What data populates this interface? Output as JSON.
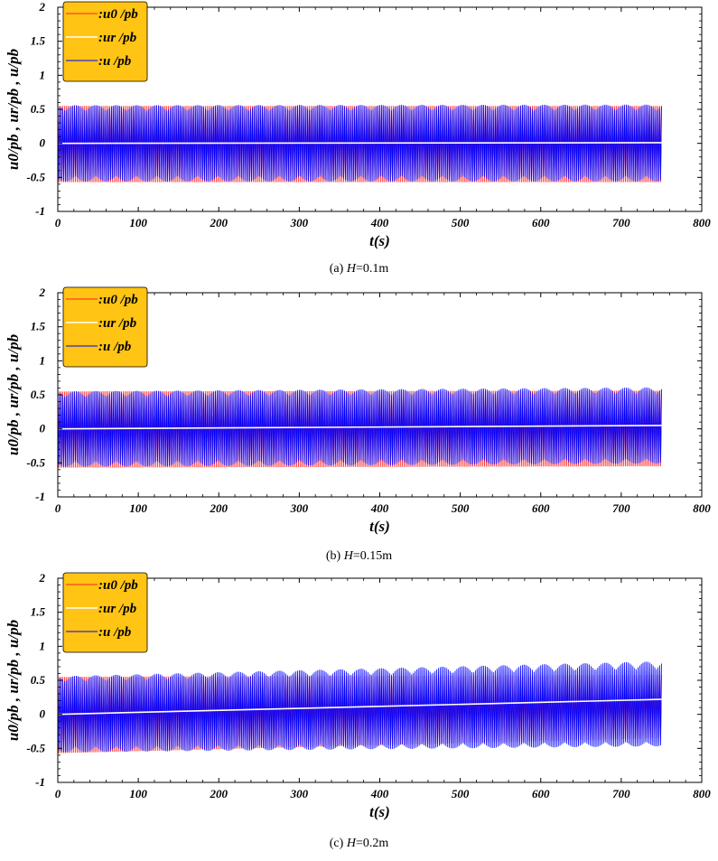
{
  "chart_data": [
    {
      "type": "line",
      "caption": {
        "prefix": "(a) ",
        "var": "H",
        "suffix": "=0.1m"
      },
      "xlabel": "t(s)",
      "ylabel": "u0/pb , ur/pb , u/pb",
      "xlim": [
        0,
        800
      ],
      "ylim": [
        -1,
        2
      ],
      "xticks": [
        "0",
        "100",
        "200",
        "300",
        "400",
        "500",
        "600",
        "700",
        "800"
      ],
      "yticks": [
        "-1",
        "-0.5",
        "0",
        "0.5",
        "1",
        "1.5",
        "2"
      ],
      "legend_position": "top-left",
      "t_end": 750,
      "series": [
        {
          "name": ":u0 /pb",
          "color": "#ff2020",
          "kind": "oscillation",
          "upper": [
            0.55,
            0.55
          ],
          "lower": [
            -0.57,
            -0.57
          ]
        },
        {
          "name": ":ur /pb",
          "color": "#ffffff",
          "kind": "mean",
          "values": [
            0.0,
            0.01
          ]
        },
        {
          "name": ":u /pb",
          "color": "#0000ff",
          "kind": "oscillation",
          "upper": [
            0.56,
            0.57
          ],
          "lower": [
            -0.56,
            -0.56
          ]
        }
      ]
    },
    {
      "type": "line",
      "caption": {
        "prefix": "(b) ",
        "var": "H",
        "suffix": "=0.15m"
      },
      "xlabel": "t(s)",
      "ylabel": "u0/pb , ur/pb , u/pb",
      "xlim": [
        0,
        800
      ],
      "ylim": [
        -1,
        2
      ],
      "xticks": [
        "0",
        "100",
        "200",
        "300",
        "400",
        "500",
        "600",
        "700",
        "800"
      ],
      "yticks": [
        "-1",
        "-0.5",
        "0",
        "0.5",
        "1",
        "1.5",
        "2"
      ],
      "legend_position": "top-left",
      "t_end": 750,
      "series": [
        {
          "name": ":u0 /pb",
          "color": "#ff2020",
          "kind": "oscillation",
          "upper": [
            0.55,
            0.56
          ],
          "lower": [
            -0.57,
            -0.55
          ]
        },
        {
          "name": ":ur /pb",
          "color": "#ffffff",
          "kind": "mean",
          "values": [
            0.0,
            0.05
          ]
        },
        {
          "name": ":u /pb",
          "color": "#0000ff",
          "kind": "oscillation",
          "upper": [
            0.55,
            0.61
          ],
          "lower": [
            -0.56,
            -0.51
          ]
        }
      ]
    },
    {
      "type": "line",
      "caption": {
        "prefix": "(c) ",
        "var": "H",
        "suffix": "=0.2m"
      },
      "xlabel": "t(s)",
      "ylabel": "u0/pb , ur/pb , u/pb",
      "xlim": [
        0,
        800
      ],
      "ylim": [
        -1,
        2
      ],
      "xticks": [
        "0",
        "100",
        "200",
        "300",
        "400",
        "500",
        "600",
        "700",
        "800"
      ],
      "yticks": [
        "-1",
        "-0.5",
        "0",
        "0.5",
        "1",
        "1.5",
        "2"
      ],
      "legend_position": "top-left",
      "t_end": 750,
      "series": [
        {
          "name": ":u0 /pb",
          "color": "#ff2020",
          "kind": "oscillation",
          "upper": [
            0.55,
            0.58
          ],
          "lower": [
            -0.57,
            -0.35
          ]
        },
        {
          "name": ":ur /pb",
          "color": "#ffffff",
          "kind": "mean",
          "values": [
            0.0,
            0.22
          ]
        },
        {
          "name": ":u /pb",
          "color": "#0000ff",
          "kind": "oscillation",
          "upper": [
            0.56,
            0.78
          ],
          "lower": [
            -0.56,
            -0.47
          ]
        }
      ]
    }
  ],
  "legend_style": {
    "background": "#ffc414",
    "border": "#000000"
  }
}
